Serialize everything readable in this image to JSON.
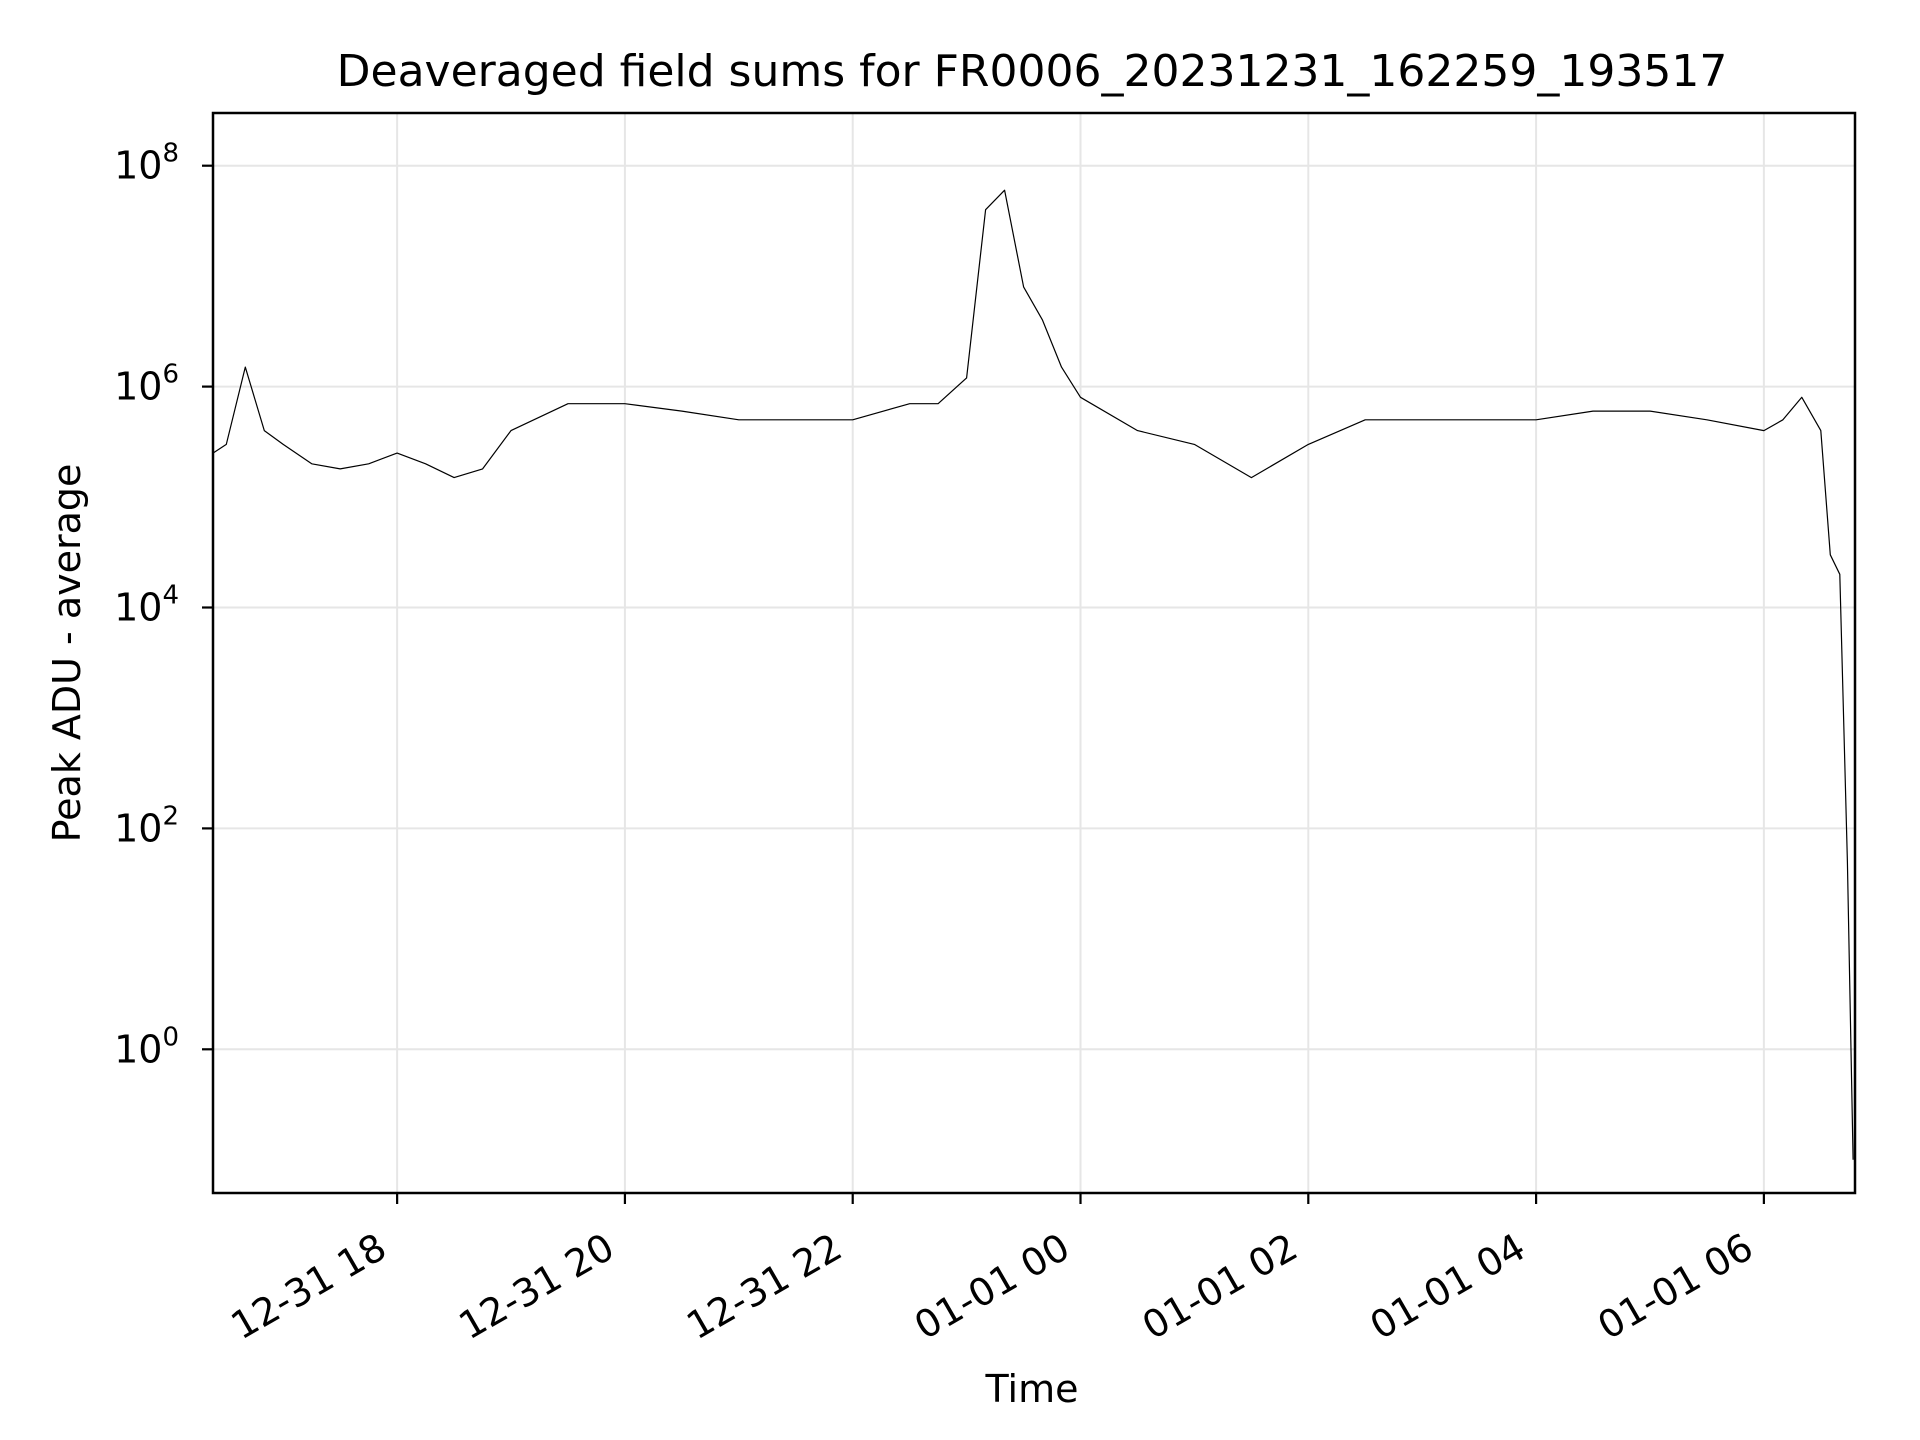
{
  "chart_data": {
    "type": "line",
    "title": "Deaveraged field sums for FR0006_20231231_162259_193517",
    "xlabel": "Time",
    "ylabel": "Peak ADU - average",
    "yscale": "log",
    "grid": true,
    "line_color": "#000000",
    "grid_color": "#e6e6e6",
    "xlim": [
      "2023-12-31 16:23",
      "2024-01-01 06:48"
    ],
    "ylim": [
      0.05,
      300000000
    ],
    "xticks": [
      {
        "value": "2023-12-31 18:00",
        "label": "12-31 18"
      },
      {
        "value": "2023-12-31 20:00",
        "label": "12-31 20"
      },
      {
        "value": "2023-12-31 22:00",
        "label": "12-31 22"
      },
      {
        "value": "2024-01-01 00:00",
        "label": "01-01 00"
      },
      {
        "value": "2024-01-01 02:00",
        "label": "01-01 02"
      },
      {
        "value": "2024-01-01 04:00",
        "label": "01-01 04"
      },
      {
        "value": "2024-01-01 06:00",
        "label": "01-01 06"
      }
    ],
    "yticks": [
      {
        "value": 1,
        "base": "10",
        "exp": "0"
      },
      {
        "value": 100,
        "base": "10",
        "exp": "2"
      },
      {
        "value": 10000,
        "base": "10",
        "exp": "4"
      },
      {
        "value": 1000000,
        "base": "10",
        "exp": "6"
      },
      {
        "value": 100000000,
        "base": "10",
        "exp": "8"
      }
    ],
    "series": [
      {
        "x": [
          "2023-12-31 16:23",
          "2023-12-31 16:30",
          "2023-12-31 16:40",
          "2023-12-31 16:50",
          "2023-12-31 17:00",
          "2023-12-31 17:15",
          "2023-12-31 17:30",
          "2023-12-31 17:45",
          "2023-12-31 18:00",
          "2023-12-31 18:15",
          "2023-12-31 18:30",
          "2023-12-31 18:45",
          "2023-12-31 19:00",
          "2023-12-31 19:30",
          "2023-12-31 20:00",
          "2023-12-31 20:30",
          "2023-12-31 21:00",
          "2023-12-31 21:30",
          "2023-12-31 22:00",
          "2023-12-31 22:30",
          "2023-12-31 22:45",
          "2023-12-31 23:00",
          "2023-12-31 23:10",
          "2023-12-31 23:20",
          "2023-12-31 23:30",
          "2023-12-31 23:40",
          "2023-12-31 23:50",
          "2024-01-01 00:00",
          "2024-01-01 00:30",
          "2024-01-01 01:00",
          "2024-01-01 01:30",
          "2024-01-01 02:00",
          "2024-01-01 02:30",
          "2024-01-01 03:00",
          "2024-01-01 03:30",
          "2024-01-01 04:00",
          "2024-01-01 04:30",
          "2024-01-01 05:00",
          "2024-01-01 05:30",
          "2024-01-01 06:00",
          "2024-01-01 06:10",
          "2024-01-01 06:20",
          "2024-01-01 06:30",
          "2024-01-01 06:35",
          "2024-01-01 06:40",
          "2024-01-01 06:44",
          "2024-01-01 06:47"
        ],
        "y": [
          250000,
          300000,
          1500000,
          400000,
          300000,
          200000,
          180000,
          200000,
          250000,
          200000,
          150000,
          180000,
          400000,
          700000,
          700000,
          600000,
          500000,
          500000,
          500000,
          700000,
          700000,
          1200000,
          40000000,
          60000000,
          8000000,
          4000000,
          1500000,
          800000,
          400000,
          300000,
          150000,
          300000,
          500000,
          500000,
          500000,
          500000,
          600000,
          600000,
          500000,
          400000,
          500000,
          800000,
          400000,
          30000,
          20000,
          50,
          0.1
        ]
      }
    ]
  }
}
